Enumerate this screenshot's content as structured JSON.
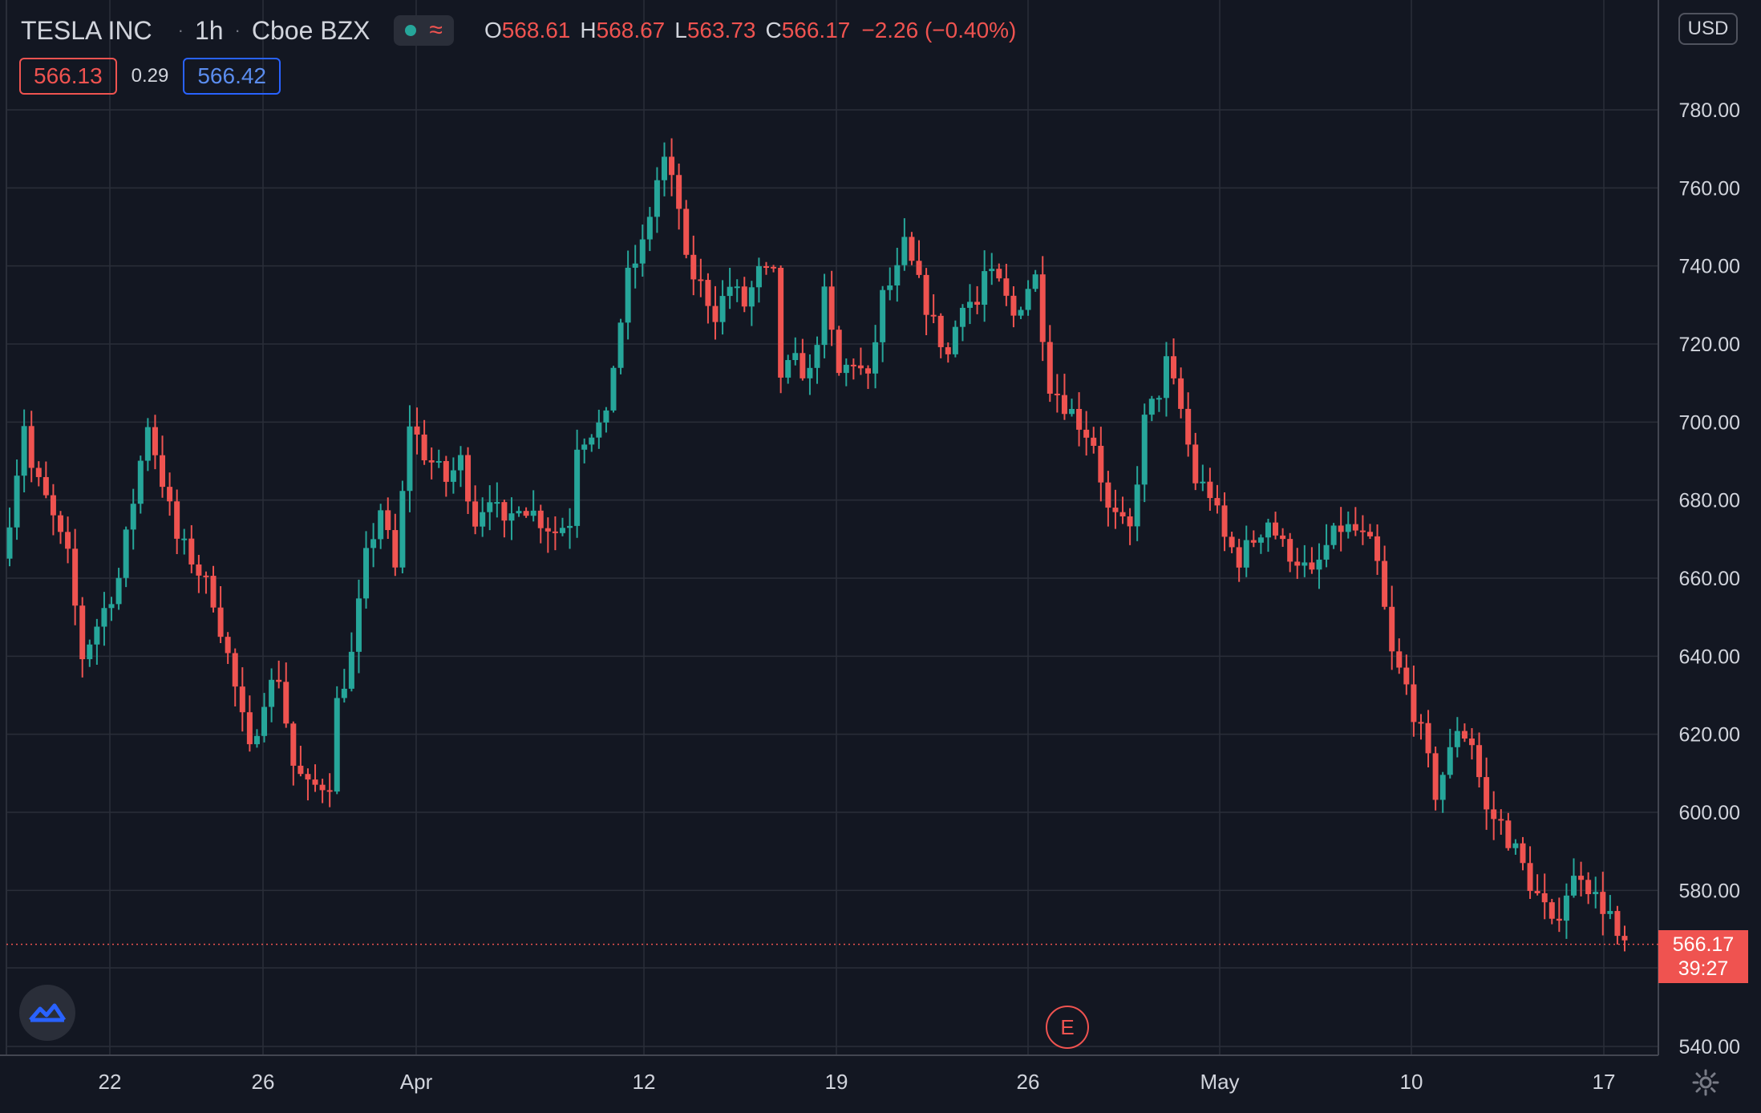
{
  "header": {
    "symbol": "TESLA INC",
    "timeframe": "1h",
    "exchange": "Cboe BZX",
    "market_status_icon": "market-open-dot-icon",
    "wave_icon": "approx-wave-icon",
    "ohlc": {
      "o_label": "O",
      "o": "568.61",
      "h_label": "H",
      "h": "568.67",
      "l_label": "L",
      "l": "563.73",
      "c_label": "C",
      "c": "566.17",
      "change": "−2.26 (−0.40%)"
    }
  },
  "quote": {
    "bid": "566.13",
    "spread": "0.29",
    "ask": "566.42"
  },
  "currency_button": "USD",
  "earnings_marker": "E",
  "last_price": {
    "price": "566.17",
    "countdown": "39:27"
  },
  "colors": {
    "up": "#26a69a",
    "down": "#ef5350",
    "background": "#131722",
    "grid": "#2a2e39"
  },
  "chart_data": {
    "type": "candlestick",
    "title": "TESLA INC",
    "ylabel": "",
    "ylim": [
      540,
      790
    ],
    "y_ticks": [
      "540.00",
      "580.00",
      "600.00",
      "620.00",
      "640.00",
      "660.00",
      "680.00",
      "700.00",
      "720.00",
      "740.00",
      "760.00",
      "780.00"
    ],
    "x_tick_labels": [
      "22",
      "26",
      "Apr",
      "12",
      "19",
      "26",
      "May",
      "10",
      "17"
    ],
    "last_price_line": 566.17,
    "grid": true,
    "path": [
      [
        0,
        665
      ],
      [
        1,
        676
      ],
      [
        3,
        700
      ],
      [
        4,
        688
      ],
      [
        6,
        680
      ],
      [
        9,
        665
      ],
      [
        11,
        640
      ],
      [
        13,
        648
      ],
      [
        16,
        660
      ],
      [
        19,
        690
      ],
      [
        20,
        700
      ],
      [
        22,
        685
      ],
      [
        24,
        670
      ],
      [
        26,
        665
      ],
      [
        29,
        655
      ],
      [
        31,
        640
      ],
      [
        34,
        615
      ],
      [
        36,
        630
      ],
      [
        38,
        635
      ],
      [
        40,
        612
      ],
      [
        42,
        606
      ],
      [
        45,
        608
      ],
      [
        46,
        628
      ],
      [
        48,
        640
      ],
      [
        50,
        665
      ],
      [
        52,
        678
      ],
      [
        54,
        662
      ],
      [
        56,
        700
      ],
      [
        58,
        692
      ],
      [
        61,
        685
      ],
      [
        63,
        690
      ],
      [
        65,
        675
      ],
      [
        67,
        682
      ],
      [
        69,
        672
      ],
      [
        71,
        680
      ],
      [
        74,
        675
      ],
      [
        76,
        672
      ],
      [
        78,
        675
      ],
      [
        79,
        695
      ],
      [
        81,
        698
      ],
      [
        83,
        700
      ],
      [
        84,
        715
      ],
      [
        86,
        737
      ],
      [
        88,
        745
      ],
      [
        90,
        762
      ],
      [
        91,
        767
      ],
      [
        93,
        755
      ],
      [
        94,
        740
      ],
      [
        96,
        735
      ],
      [
        98,
        728
      ],
      [
        100,
        735
      ],
      [
        102,
        730
      ],
      [
        104,
        738
      ],
      [
        106,
        737
      ],
      [
        107,
        712
      ],
      [
        109,
        715
      ],
      [
        111,
        712
      ],
      [
        113,
        732
      ],
      [
        115,
        712
      ],
      [
        117,
        716
      ],
      [
        119,
        710
      ],
      [
        121,
        732
      ],
      [
        123,
        738
      ],
      [
        124,
        745
      ],
      [
        126,
        735
      ],
      [
        128,
        725
      ],
      [
        130,
        717
      ],
      [
        132,
        732
      ],
      [
        134,
        730
      ],
      [
        135,
        738
      ],
      [
        137,
        735
      ],
      [
        139,
        727
      ],
      [
        141,
        735
      ],
      [
        142,
        737
      ],
      [
        144,
        710
      ],
      [
        146,
        705
      ],
      [
        148,
        700
      ],
      [
        150,
        695
      ],
      [
        152,
        677
      ],
      [
        154,
        673
      ],
      [
        155,
        672
      ],
      [
        157,
        700
      ],
      [
        159,
        708
      ],
      [
        160,
        715
      ],
      [
        162,
        703
      ],
      [
        164,
        685
      ],
      [
        166,
        682
      ],
      [
        168,
        670
      ],
      [
        170,
        665
      ],
      [
        172,
        670
      ],
      [
        174,
        675
      ],
      [
        176,
        668
      ],
      [
        178,
        665
      ],
      [
        180,
        660
      ],
      [
        182,
        668
      ],
      [
        184,
        673
      ],
      [
        186,
        672
      ],
      [
        188,
        668
      ],
      [
        189,
        663
      ],
      [
        191,
        640
      ],
      [
        193,
        632
      ],
      [
        195,
        620
      ],
      [
        197,
        605
      ],
      [
        199,
        615
      ],
      [
        200,
        622
      ],
      [
        202,
        618
      ],
      [
        204,
        600
      ],
      [
        206,
        597
      ],
      [
        208,
        590
      ],
      [
        210,
        582
      ],
      [
        212,
        575
      ],
      [
        213,
        570
      ],
      [
        215,
        580
      ],
      [
        217,
        585
      ],
      [
        219,
        578
      ],
      [
        221,
        574
      ],
      [
        222,
        566
      ]
    ]
  }
}
